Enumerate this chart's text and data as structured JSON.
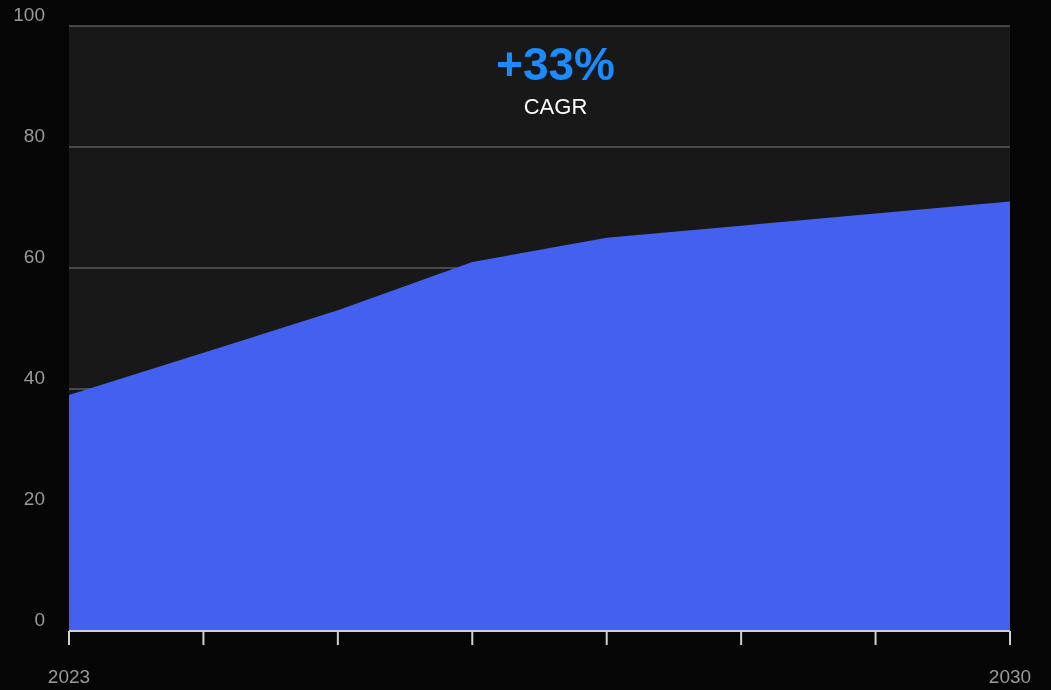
{
  "chart_data": {
    "type": "area",
    "x": [
      2023,
      2024,
      2025,
      2026,
      2027,
      2028,
      2029,
      2030
    ],
    "series": [
      {
        "color": "#4361ee",
        "values": [
          39,
          46,
          53,
          61,
          65,
          67,
          69,
          71
        ]
      }
    ],
    "xlim": [
      2023,
      2030
    ],
    "xticks": [
      2023,
      {
        "value": 2024,
        "label": null
      },
      {
        "value": 2025,
        "label": null
      },
      {
        "value": 2026,
        "label": null
      },
      {
        "value": 2027,
        "label": null
      },
      {
        "value": 2028,
        "label": null
      },
      {
        "value": 2029,
        "label": null
      },
      2030
    ],
    "ylim": [
      0,
      100
    ],
    "yticks": [
      0,
      20,
      40,
      60,
      80,
      100
    ],
    "grid": "y",
    "annotations": [
      "+33%",
      "CAGR"
    ]
  }
}
